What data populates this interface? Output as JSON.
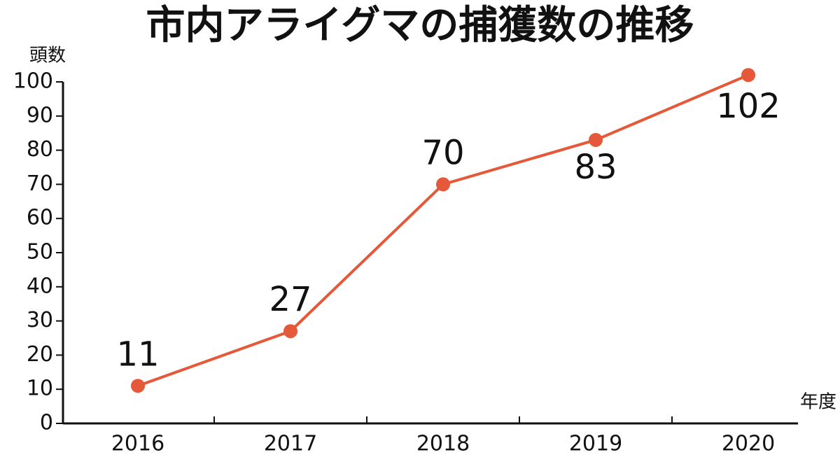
{
  "chart_data": {
    "type": "line",
    "title": "市内アライグマの捕獲数の推移",
    "y_label": "頭数",
    "x_label": "年度",
    "categories": [
      "2016",
      "2017",
      "2018",
      "2019",
      "2020"
    ],
    "series": [
      {
        "name": "捕獲数",
        "color": "#e5593a",
        "values": [
          11,
          27,
          70,
          83,
          102
        ]
      }
    ],
    "ylim": [
      0,
      100
    ],
    "yticks": [
      0,
      10,
      20,
      30,
      40,
      50,
      60,
      70,
      80,
      90,
      100
    ]
  }
}
